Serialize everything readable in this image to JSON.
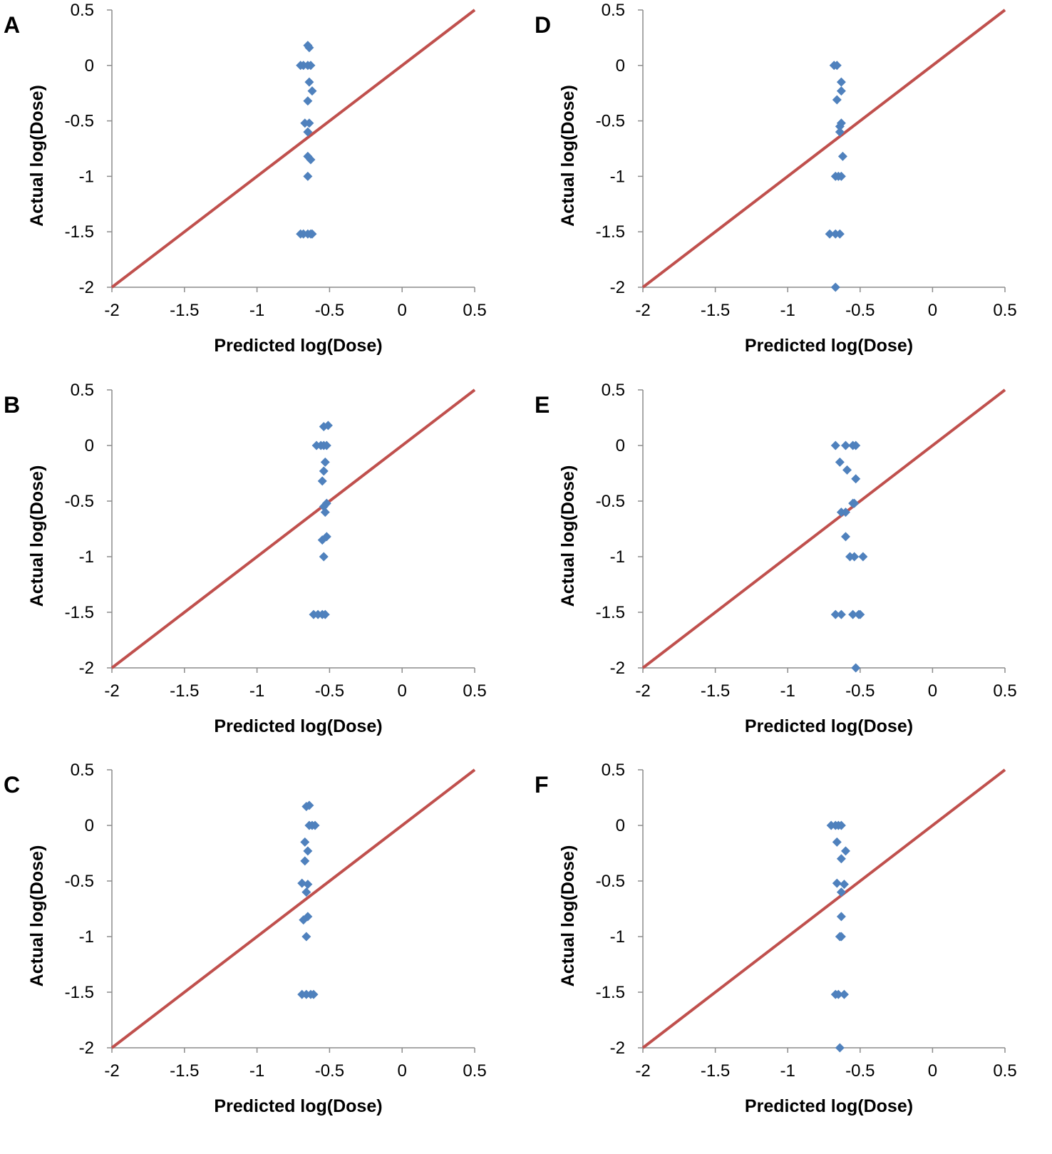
{
  "chart_data": [
    {
      "panel": "A",
      "type": "scatter",
      "xlabel": "Predicted log(Dose)",
      "ylabel": "Actual log(Dose)",
      "xlim": [
        -2,
        0.5
      ],
      "ylim": [
        -2,
        0.5
      ],
      "xticks": [
        "-2",
        "-1.5",
        "-1",
        "-0.5",
        "0",
        "0.5"
      ],
      "yticks": [
        "0.5",
        "0",
        "-0.5",
        "-1",
        "-1.5",
        "-2"
      ],
      "reference_line": {
        "from": [
          -2,
          -2
        ],
        "to": [
          0.5,
          0.5
        ],
        "color": "#C0504D"
      },
      "marker_color": "#4F81BD",
      "points": [
        [
          -0.65,
          0.18
        ],
        [
          -0.64,
          0.16
        ],
        [
          -0.7,
          0
        ],
        [
          -0.68,
          0
        ],
        [
          -0.65,
          0
        ],
        [
          -0.63,
          0
        ],
        [
          -0.64,
          -0.15
        ],
        [
          -0.62,
          -0.23
        ],
        [
          -0.65,
          -0.32
        ],
        [
          -0.67,
          -0.52
        ],
        [
          -0.64,
          -0.52
        ],
        [
          -0.65,
          -0.6
        ],
        [
          -0.65,
          -0.82
        ],
        [
          -0.63,
          -0.85
        ],
        [
          -0.65,
          -1.0
        ],
        [
          -0.7,
          -1.52
        ],
        [
          -0.68,
          -1.52
        ],
        [
          -0.65,
          -1.52
        ],
        [
          -0.63,
          -1.52
        ],
        [
          -0.62,
          -1.52
        ]
      ]
    },
    {
      "panel": "B",
      "type": "scatter",
      "xlabel": "Predicted log(Dose)",
      "ylabel": "Actual log(Dose)",
      "xlim": [
        -2,
        0.5
      ],
      "ylim": [
        -2,
        0.5
      ],
      "xticks": [
        "-2",
        "-1.5",
        "-1",
        "-0.5",
        "0",
        "0.5"
      ],
      "yticks": [
        "0.5",
        "0",
        "-0.5",
        "-1",
        "-1.5",
        "-2"
      ],
      "reference_line": {
        "from": [
          -2,
          -2
        ],
        "to": [
          0.5,
          0.5
        ],
        "color": "#C0504D"
      },
      "marker_color": "#4F81BD",
      "points": [
        [
          -0.54,
          0.17
        ],
        [
          -0.51,
          0.18
        ],
        [
          -0.59,
          0
        ],
        [
          -0.56,
          0
        ],
        [
          -0.54,
          0
        ],
        [
          -0.52,
          0
        ],
        [
          -0.53,
          -0.15
        ],
        [
          -0.54,
          -0.23
        ],
        [
          -0.55,
          -0.32
        ],
        [
          -0.52,
          -0.52
        ],
        [
          -0.54,
          -0.55
        ],
        [
          -0.53,
          -0.6
        ],
        [
          -0.52,
          -0.82
        ],
        [
          -0.55,
          -0.85
        ],
        [
          -0.54,
          -1.0
        ],
        [
          -0.61,
          -1.52
        ],
        [
          -0.58,
          -1.52
        ],
        [
          -0.55,
          -1.52
        ],
        [
          -0.53,
          -1.52
        ]
      ]
    },
    {
      "panel": "C",
      "type": "scatter",
      "xlabel": "Predicted log(Dose)",
      "ylabel": "Actual log(Dose)",
      "xlim": [
        -2,
        0.5
      ],
      "ylim": [
        -2,
        0.5
      ],
      "xticks": [
        "-2",
        "-1.5",
        "-1",
        "-0.5",
        "0",
        "0.5"
      ],
      "yticks": [
        "0.5",
        "0",
        "-0.5",
        "-1",
        "-1.5",
        "-2"
      ],
      "reference_line": {
        "from": [
          -2,
          -2
        ],
        "to": [
          0.5,
          0.5
        ],
        "color": "#C0504D"
      },
      "marker_color": "#4F81BD",
      "points": [
        [
          -0.66,
          0.17
        ],
        [
          -0.64,
          0.18
        ],
        [
          -0.64,
          0
        ],
        [
          -0.62,
          0
        ],
        [
          -0.6,
          0
        ],
        [
          -0.67,
          -0.15
        ],
        [
          -0.65,
          -0.23
        ],
        [
          -0.67,
          -0.32
        ],
        [
          -0.69,
          -0.52
        ],
        [
          -0.65,
          -0.53
        ],
        [
          -0.66,
          -0.6
        ],
        [
          -0.65,
          -0.82
        ],
        [
          -0.68,
          -0.85
        ],
        [
          -0.66,
          -1.0
        ],
        [
          -0.69,
          -1.52
        ],
        [
          -0.66,
          -1.52
        ],
        [
          -0.63,
          -1.52
        ],
        [
          -0.61,
          -1.52
        ]
      ]
    },
    {
      "panel": "D",
      "type": "scatter",
      "xlabel": "Predicted log(Dose)",
      "ylabel": "Actual log(Dose)",
      "xlim": [
        -2,
        0.5
      ],
      "ylim": [
        -2,
        0.5
      ],
      "xticks": [
        "-2",
        "-1.5",
        "-1",
        "-0.5",
        "0",
        "0.5"
      ],
      "yticks": [
        "0.5",
        "0",
        "-0.5",
        "-1",
        "-1.5",
        "-2"
      ],
      "reference_line": {
        "from": [
          -2,
          -2
        ],
        "to": [
          0.5,
          0.5
        ],
        "color": "#C0504D"
      },
      "marker_color": "#4F81BD",
      "points": [
        [
          -0.68,
          0
        ],
        [
          -0.66,
          0
        ],
        [
          -0.63,
          -0.15
        ],
        [
          -0.63,
          -0.23
        ],
        [
          -0.66,
          -0.31
        ],
        [
          -0.63,
          -0.52
        ],
        [
          -0.64,
          -0.55
        ],
        [
          -0.64,
          -0.6
        ],
        [
          -0.62,
          -0.82
        ],
        [
          -0.67,
          -1.0
        ],
        [
          -0.65,
          -1.0
        ],
        [
          -0.63,
          -1.0
        ],
        [
          -0.71,
          -1.52
        ],
        [
          -0.67,
          -1.52
        ],
        [
          -0.64,
          -1.52
        ],
        [
          -0.67,
          -2.0
        ]
      ]
    },
    {
      "panel": "E",
      "type": "scatter",
      "xlabel": "Predicted log(Dose)",
      "ylabel": "Actual log(Dose)",
      "xlim": [
        -2,
        0.5
      ],
      "ylim": [
        -2,
        0.5
      ],
      "xticks": [
        "-2",
        "-1.5",
        "-1",
        "-0.5",
        "0",
        "0.5"
      ],
      "yticks": [
        "0.5",
        "0",
        "-0.5",
        "-1",
        "-1.5",
        "-2"
      ],
      "reference_line": {
        "from": [
          -2,
          -2
        ],
        "to": [
          0.5,
          0.5
        ],
        "color": "#C0504D"
      },
      "marker_color": "#4F81BD",
      "points": [
        [
          -0.67,
          0
        ],
        [
          -0.6,
          0
        ],
        [
          -0.55,
          0
        ],
        [
          -0.53,
          0
        ],
        [
          -0.64,
          -0.15
        ],
        [
          -0.59,
          -0.22
        ],
        [
          -0.53,
          -0.3
        ],
        [
          -0.55,
          -0.52
        ],
        [
          -0.54,
          -0.52
        ],
        [
          -0.63,
          -0.6
        ],
        [
          -0.6,
          -0.6
        ],
        [
          -0.6,
          -0.82
        ],
        [
          -0.57,
          -1.0
        ],
        [
          -0.54,
          -1.0
        ],
        [
          -0.48,
          -1.0
        ],
        [
          -0.67,
          -1.52
        ],
        [
          -0.63,
          -1.52
        ],
        [
          -0.55,
          -1.52
        ],
        [
          -0.51,
          -1.52
        ],
        [
          -0.5,
          -1.52
        ],
        [
          -0.53,
          -2.0
        ]
      ]
    },
    {
      "panel": "F",
      "type": "scatter",
      "xlabel": "Predicted log(Dose)",
      "ylabel": "Actual log(Dose)",
      "xlim": [
        -2,
        0.5
      ],
      "ylim": [
        -2,
        0.5
      ],
      "xticks": [
        "-2",
        "-1.5",
        "-1",
        "-0.5",
        "0",
        "0.5"
      ],
      "yticks": [
        "0.5",
        "0",
        "-0.5",
        "-1",
        "-1.5",
        "-2"
      ],
      "reference_line": {
        "from": [
          -2,
          -2
        ],
        "to": [
          0.5,
          0.5
        ],
        "color": "#C0504D"
      },
      "marker_color": "#4F81BD",
      "points": [
        [
          -0.7,
          0
        ],
        [
          -0.67,
          0
        ],
        [
          -0.65,
          0
        ],
        [
          -0.63,
          0
        ],
        [
          -0.66,
          -0.15
        ],
        [
          -0.6,
          -0.23
        ],
        [
          -0.63,
          -0.3
        ],
        [
          -0.66,
          -0.52
        ],
        [
          -0.61,
          -0.53
        ],
        [
          -0.63,
          -0.6
        ],
        [
          -0.63,
          -0.82
        ],
        [
          -0.64,
          -1.0
        ],
        [
          -0.63,
          -1.0
        ],
        [
          -0.67,
          -1.52
        ],
        [
          -0.65,
          -1.52
        ],
        [
          -0.61,
          -1.52
        ],
        [
          -0.64,
          -2.0
        ]
      ]
    }
  ]
}
